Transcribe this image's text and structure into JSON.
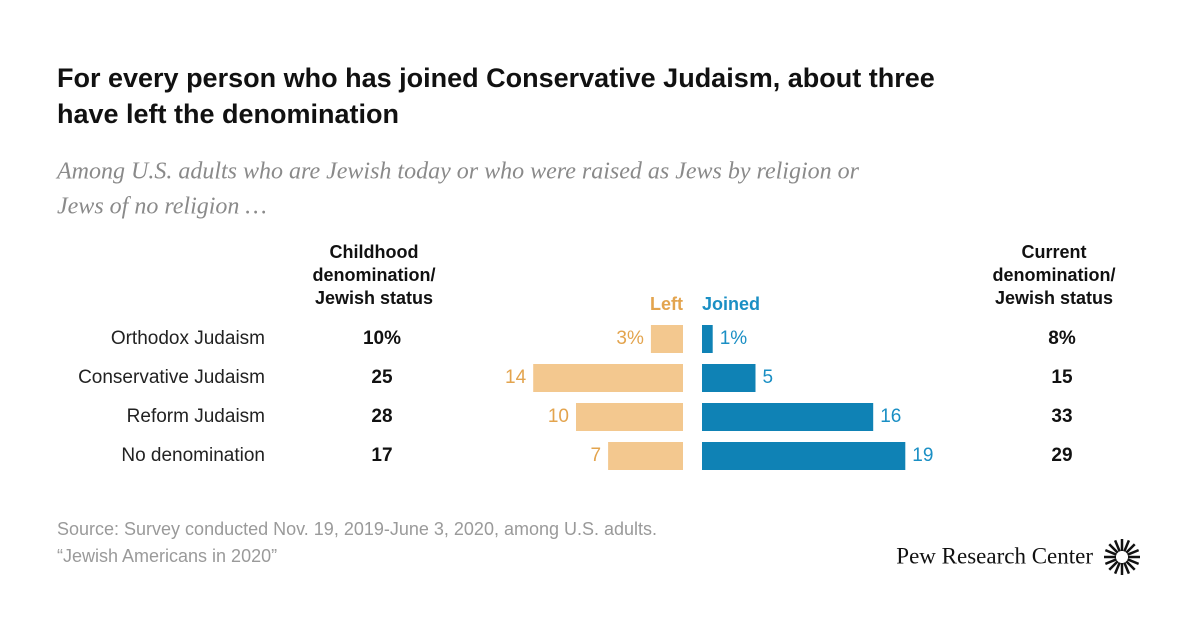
{
  "chart_data": {
    "type": "bar",
    "title": [
      "For every person who has joined Conservative Judaism, about three",
      "have left the denomination"
    ],
    "subtitle": [
      "Among U.S. adults who are Jewish today or who were raised as Jews by religion or",
      "Jews of no religion …"
    ],
    "categories": [
      "Orthodox Judaism",
      "Conservative Judaism",
      "Reform Judaism",
      "No denomination"
    ],
    "columns": [
      {
        "header": [
          "Childhood",
          "denomination/",
          "Jewish status"
        ],
        "values": [
          10,
          25,
          28,
          17
        ],
        "value_labels": [
          "10%",
          "25",
          "28",
          "17"
        ]
      },
      {
        "header": [
          "Current",
          "denomination/",
          "Jewish status"
        ],
        "values": [
          8,
          15,
          33,
          29
        ],
        "value_labels": [
          "8%",
          "15",
          "33",
          "29"
        ]
      }
    ],
    "series": [
      {
        "name": "Left",
        "color": "#f3c88f",
        "label_color": "#e3a44e",
        "values": [
          3,
          14,
          10,
          7
        ],
        "value_labels": [
          "3%",
          "14",
          "10",
          "7"
        ]
      },
      {
        "name": "Joined",
        "color": "#0f82b5",
        "label_color": "#1a8fc4",
        "values": [
          1,
          5,
          16,
          19
        ],
        "value_labels": [
          "1%",
          "5",
          "16",
          "19"
        ]
      }
    ],
    "source": [
      "Source: Survey conducted Nov. 19, 2019-June 3, 2020, among U.S. adults.",
      "“Jewish Americans in 2020”"
    ],
    "logo": "Pew Research Center"
  }
}
